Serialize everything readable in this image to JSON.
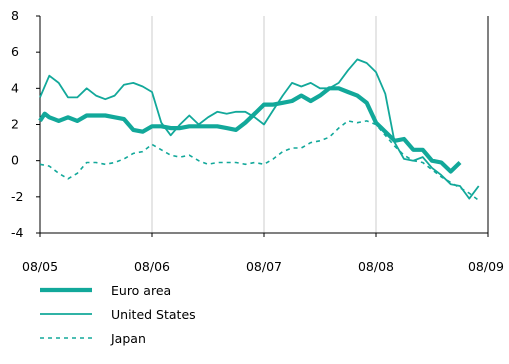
{
  "chart_data": {
    "type": "line",
    "x": [
      "08/05",
      "08/06",
      "08/07",
      "08/08",
      "08/09"
    ],
    "x_ticks": [
      "08/05",
      "08/06",
      "08/07",
      "08/08",
      "08/09"
    ],
    "ylim": [
      -4,
      8
    ],
    "y_ticks": [
      -4,
      -2,
      0,
      2,
      4,
      6,
      8
    ],
    "grid": "vertical",
    "legend_placement": "bottom-left",
    "colors": {
      "series": "#12a89a",
      "axis": "#000000",
      "grid": "#cccccc"
    },
    "series": [
      {
        "name": "Euro area",
        "style": "thick-solid",
        "values": [
          [
            0,
            2.2
          ],
          [
            0.5,
            2.6
          ],
          [
            1,
            2.4
          ],
          [
            1.5,
            2.3
          ],
          [
            2,
            2.2
          ],
          [
            3,
            2.4
          ],
          [
            4,
            2.2
          ],
          [
            5,
            2.5
          ],
          [
            6,
            2.5
          ],
          [
            7,
            2.5
          ],
          [
            8,
            2.4
          ],
          [
            9,
            2.3
          ],
          [
            10,
            1.7
          ],
          [
            11,
            1.6
          ],
          [
            12,
            1.9
          ],
          [
            13,
            1.9
          ],
          [
            14,
            1.8
          ],
          [
            15,
            1.8
          ],
          [
            16,
            1.9
          ],
          [
            17,
            1.9
          ],
          [
            18,
            1.9
          ],
          [
            19,
            1.9
          ],
          [
            20,
            1.8
          ],
          [
            21,
            1.7
          ],
          [
            22,
            2.1
          ],
          [
            23,
            2.6
          ],
          [
            24,
            3.1
          ],
          [
            25,
            3.1
          ],
          [
            26,
            3.2
          ],
          [
            27,
            3.3
          ],
          [
            28,
            3.6
          ],
          [
            29,
            3.3
          ],
          [
            30,
            3.6
          ],
          [
            31,
            4.0
          ],
          [
            32,
            4.0
          ],
          [
            33,
            3.8
          ],
          [
            34,
            3.6
          ],
          [
            35,
            3.2
          ],
          [
            36,
            2.1
          ],
          [
            37,
            1.6
          ],
          [
            38,
            1.1
          ],
          [
            39,
            1.2
          ],
          [
            40,
            0.6
          ],
          [
            41,
            0.6
          ],
          [
            42,
            0.0
          ],
          [
            43,
            -0.1
          ],
          [
            44,
            -0.6
          ],
          [
            45,
            -0.1
          ]
        ]
      },
      {
        "name": "United States",
        "style": "thin-solid",
        "values": [
          [
            0,
            3.5
          ],
          [
            1,
            4.7
          ],
          [
            2,
            4.3
          ],
          [
            3,
            3.5
          ],
          [
            4,
            3.5
          ],
          [
            5,
            4.0
          ],
          [
            6,
            3.6
          ],
          [
            7,
            3.4
          ],
          [
            8,
            3.6
          ],
          [
            9,
            4.2
          ],
          [
            10,
            4.3
          ],
          [
            11,
            4.1
          ],
          [
            12,
            3.8
          ],
          [
            13,
            2.1
          ],
          [
            14,
            1.4
          ],
          [
            15,
            2.0
          ],
          [
            16,
            2.5
          ],
          [
            17,
            2.0
          ],
          [
            18,
            2.4
          ],
          [
            19,
            2.7
          ],
          [
            20,
            2.6
          ],
          [
            21,
            2.7
          ],
          [
            22,
            2.7
          ],
          [
            23,
            2.4
          ],
          [
            24,
            2.0
          ],
          [
            25,
            2.8
          ],
          [
            26,
            3.6
          ],
          [
            27,
            4.3
          ],
          [
            28,
            4.1
          ],
          [
            29,
            4.3
          ],
          [
            30,
            4.0
          ],
          [
            31,
            4.0
          ],
          [
            32,
            4.3
          ],
          [
            33,
            5.0
          ],
          [
            34,
            5.6
          ],
          [
            35,
            5.4
          ],
          [
            36,
            4.9
          ],
          [
            37,
            3.7
          ],
          [
            38,
            1.0
          ],
          [
            39,
            0.1
          ],
          [
            40,
            0.0
          ],
          [
            41,
            0.2
          ],
          [
            42,
            -0.4
          ],
          [
            43,
            -0.8
          ],
          [
            44,
            -1.3
          ],
          [
            45,
            -1.4
          ],
          [
            46,
            -2.1
          ],
          [
            47,
            -1.4
          ]
        ]
      },
      {
        "name": "Japan",
        "style": "dashed",
        "values": [
          [
            0,
            -0.2
          ],
          [
            1,
            -0.3
          ],
          [
            2,
            -0.7
          ],
          [
            3,
            -1.0
          ],
          [
            4,
            -0.7
          ],
          [
            5,
            -0.1
          ],
          [
            6,
            -0.1
          ],
          [
            7,
            -0.2
          ],
          [
            8,
            -0.1
          ],
          [
            9,
            0.1
          ],
          [
            10,
            0.4
          ],
          [
            11,
            0.5
          ],
          [
            12,
            0.9
          ],
          [
            13,
            0.6
          ],
          [
            14,
            0.3
          ],
          [
            15,
            0.2
          ],
          [
            16,
            0.3
          ],
          [
            17,
            0.0
          ],
          [
            18,
            -0.2
          ],
          [
            19,
            -0.1
          ],
          [
            20,
            -0.1
          ],
          [
            21,
            -0.1
          ],
          [
            22,
            -0.2
          ],
          [
            23,
            -0.1
          ],
          [
            24,
            -0.2
          ],
          [
            25,
            0.1
          ],
          [
            26,
            0.5
          ],
          [
            27,
            0.7
          ],
          [
            28,
            0.7
          ],
          [
            29,
            1.0
          ],
          [
            30,
            1.1
          ],
          [
            31,
            1.3
          ],
          [
            32,
            1.8
          ],
          [
            33,
            2.2
          ],
          [
            34,
            2.1
          ],
          [
            35,
            2.2
          ],
          [
            36,
            2.0
          ],
          [
            37,
            1.4
          ],
          [
            38,
            0.8
          ],
          [
            39,
            0.3
          ],
          [
            40,
            0.0
          ],
          [
            41,
            -0.1
          ],
          [
            42,
            -0.5
          ],
          [
            43,
            -0.9
          ],
          [
            44,
            -1.2
          ],
          [
            45,
            -1.5
          ],
          [
            46,
            -1.8
          ],
          [
            47,
            -2.2
          ]
        ]
      }
    ]
  }
}
